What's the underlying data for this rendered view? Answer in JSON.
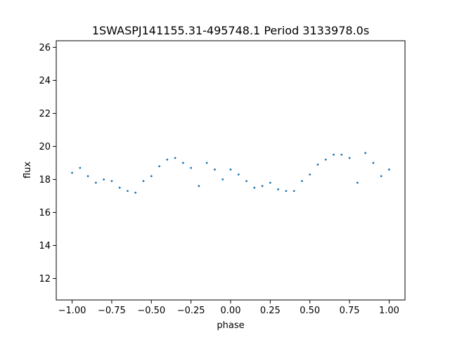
{
  "chart_data": {
    "type": "scatter",
    "title": "1SWASPJ141155.31-495748.1 Period 3133978.0s",
    "xlabel": "phase",
    "ylabel": "flux",
    "xlim": [
      -1.1,
      1.1
    ],
    "ylim": [
      10.7,
      26.4
    ],
    "x_ticks": [
      -1.0,
      -0.75,
      -0.5,
      -0.25,
      0.0,
      0.25,
      0.5,
      0.75,
      1.0
    ],
    "x_tick_labels": [
      "−1.00",
      "−0.75",
      "−0.50",
      "−0.25",
      "0.00",
      "0.25",
      "0.50",
      "0.75",
      "1.00"
    ],
    "y_ticks": [
      12,
      14,
      16,
      18,
      20,
      22,
      24,
      26
    ],
    "y_tick_labels": [
      "12",
      "14",
      "16",
      "18",
      "20",
      "22",
      "24",
      "26"
    ],
    "grid": false,
    "legend": "none",
    "marker_color": "#1f77b4",
    "series": [
      {
        "x": [
          -1.0,
          -0.95,
          -0.9,
          -0.85,
          -0.8,
          -0.75,
          -0.7,
          -0.65,
          -0.6,
          -0.55,
          -0.5,
          -0.45,
          -0.4,
          -0.35,
          -0.3,
          -0.25,
          -0.2,
          -0.15,
          -0.1,
          -0.05,
          0.0,
          0.05,
          0.1,
          0.15,
          0.2,
          0.25,
          0.3,
          0.35,
          0.4,
          0.45,
          0.5,
          0.55,
          0.6,
          0.65,
          0.7,
          0.75,
          0.8,
          0.85,
          0.9,
          0.95,
          1.0
        ],
        "y": [
          18.4,
          18.7,
          18.2,
          17.8,
          18.0,
          17.9,
          17.5,
          17.3,
          17.2,
          17.9,
          18.2,
          18.8,
          19.2,
          19.3,
          19.0,
          18.7,
          17.6,
          19.0,
          18.6,
          18.0,
          18.6,
          18.3,
          17.9,
          17.5,
          17.6,
          17.8,
          17.4,
          17.3,
          17.3,
          17.9,
          18.3,
          18.9,
          19.2,
          19.5,
          19.5,
          19.3,
          17.8,
          19.6,
          19.0,
          18.2,
          18.6
        ]
      }
    ]
  }
}
